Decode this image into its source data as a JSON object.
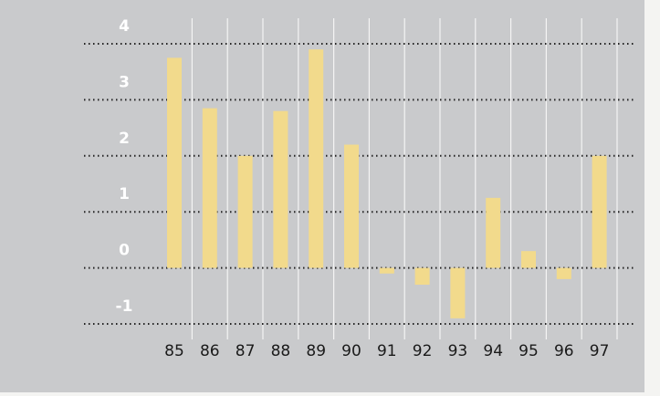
{
  "chart_data": {
    "type": "bar",
    "categories": [
      "85",
      "86",
      "87",
      "88",
      "89",
      "90",
      "91",
      "92",
      "93",
      "94",
      "95",
      "96",
      "97"
    ],
    "values": [
      3.75,
      2.85,
      2.0,
      2.8,
      3.9,
      2.2,
      -0.1,
      -0.3,
      -0.9,
      1.25,
      0.3,
      -0.2,
      2.0
    ],
    "color": "#f2da8c",
    "ylim": [
      -1,
      4
    ],
    "yticks": [
      -1,
      0,
      1,
      2,
      3,
      4
    ],
    "grid": true
  }
}
